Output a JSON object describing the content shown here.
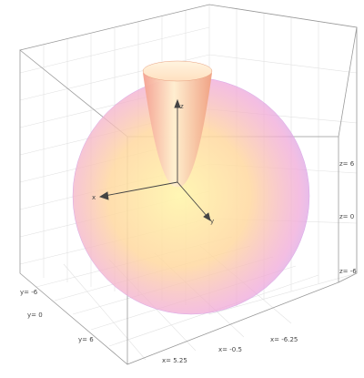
{
  "axes": {
    "x": "x",
    "y": "y",
    "z": "z"
  },
  "ticks": {
    "x": [
      "x= 5.25",
      "x= -0.5",
      "x= -6.25"
    ],
    "y": [
      "y= -6",
      "y= 0",
      "y= 6"
    ],
    "z": [
      "z= 6",
      "z= 0",
      "z= -6"
    ]
  }
}
